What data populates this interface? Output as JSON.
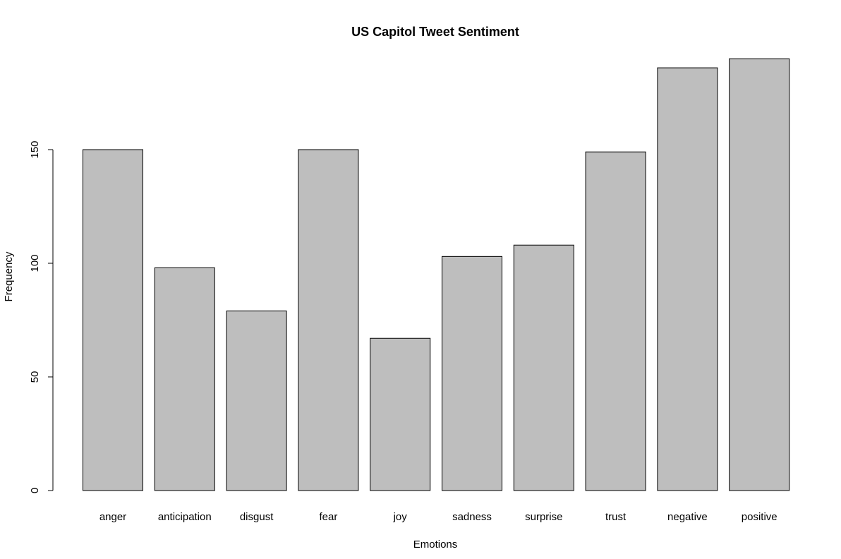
{
  "chart_data": {
    "type": "bar",
    "title": "US Capitol Tweet Sentiment",
    "xlabel": "Emotions",
    "ylabel": "Frequency",
    "categories": [
      "anger",
      "anticipation",
      "disgust",
      "fear",
      "joy",
      "sadness",
      "surprise",
      "trust",
      "negative",
      "positive"
    ],
    "values": [
      150,
      98,
      79,
      150,
      67,
      103,
      108,
      149,
      186,
      190
    ],
    "yticks": [
      0,
      50,
      100,
      150
    ],
    "ylim": [
      0,
      190
    ],
    "grid": false,
    "legend": "none",
    "bar_color": "#bebebe",
    "border_color": "#000000"
  }
}
